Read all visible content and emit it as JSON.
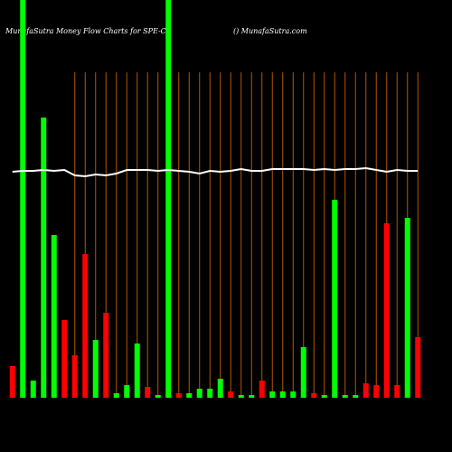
{
  "chart_data": {
    "type": "bar",
    "title": "MunafaSutra  Money Flow  Charts for SPE-C",
    "subtitle": "() MunafaSutra.com",
    "categories": [
      null,
      null,
      null,
      null,
      null,
      null,
      null,
      null,
      null,
      null,
      null,
      null,
      null,
      null,
      null,
      null,
      null,
      null,
      null,
      null,
      null,
      null,
      null,
      null,
      null,
      null,
      null,
      null,
      null,
      null,
      null,
      null,
      null,
      null,
      null,
      null,
      null,
      null,
      null,
      null
    ],
    "values": [
      35,
      440,
      19,
      310,
      180,
      86,
      47,
      159,
      64,
      94,
      5,
      14,
      60,
      12,
      3,
      440,
      5,
      5,
      10,
      10,
      21,
      7,
      3,
      3,
      19,
      7,
      7,
      7,
      56,
      5,
      3,
      219,
      3,
      3,
      16,
      14,
      193,
      14,
      199,
      67
    ],
    "colors": [
      "#ff0000",
      "#00ff00",
      "#00ff00",
      "#00ff00",
      "#00ff00",
      "#ff0000",
      "#ff0000",
      "#ff0000",
      "#00ff00",
      "#ff0000",
      "#00ff00",
      "#00ff00",
      "#00ff00",
      "#ff0000",
      "#00ff00",
      "#00ff00",
      "#ff0000",
      "#00ff00",
      "#00ff00",
      "#00ff00",
      "#00ff00",
      "#ff0000",
      "#00ff00",
      "#00ff00",
      "#ff0000",
      "#00ff00",
      "#00ff00",
      "#00ff00",
      "#00ff00",
      "#ff0000",
      "#00ff00",
      "#00ff00",
      "#00ff00",
      "#00ff00",
      "#ff0000",
      "#ff0000",
      "#ff0000",
      "#ff0000",
      "#00ff00",
      "#ff0000"
    ],
    "line": {
      "color": "#ffffff",
      "values": [
        250,
        251,
        251,
        252,
        251,
        252,
        246,
        245,
        247,
        246,
        248,
        252,
        252,
        252,
        251,
        252,
        251,
        250,
        248,
        251,
        250,
        251,
        253,
        251,
        251,
        253,
        253,
        253,
        253,
        252,
        253,
        252,
        253,
        253,
        254,
        252,
        250,
        252,
        251,
        251
      ]
    },
    "grid_color": "#b35900",
    "ylim": [
      0,
      440
    ]
  }
}
